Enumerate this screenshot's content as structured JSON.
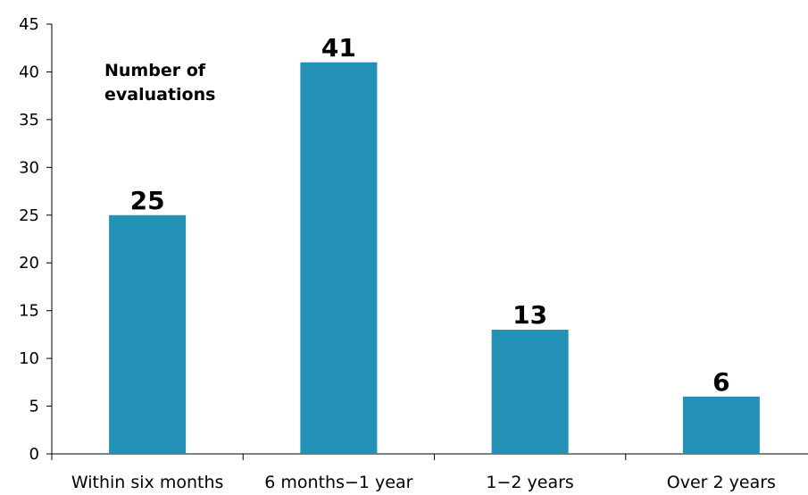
{
  "chart_data": {
    "type": "bar",
    "categories": [
      "Within six months",
      "6 months−1 year",
      "1−2 years",
      "Over 2 years"
    ],
    "values": [
      25,
      41,
      13,
      6
    ],
    "data_labels": [
      "25",
      "41",
      "13",
      "6"
    ],
    "annotation_lines": [
      "Number of",
      "evaluations"
    ],
    "ylim": [
      0,
      45
    ],
    "yticks": [
      0,
      5,
      10,
      15,
      20,
      25,
      30,
      35,
      40,
      45
    ],
    "bar_color": "#2390b5",
    "grid": false,
    "legend": "none"
  }
}
